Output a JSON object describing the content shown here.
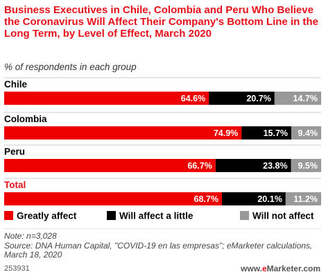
{
  "header": {
    "title": "Business Executives in Chile, Colombia and Peru Who Believe the Coronavirus Will Affect Their Company's Bottom Line in the Long Term, by Level of Effect, March 2020",
    "subtitle": "% of respondents in each group"
  },
  "chart_data": {
    "type": "bar",
    "orientation": "horizontal",
    "stacked": true,
    "categories": [
      "Chile",
      "Colombia",
      "Peru",
      "Total"
    ],
    "series": [
      {
        "name": "Greatly affect",
        "values": [
          64.6,
          74.9,
          66.7,
          68.7
        ],
        "labels": [
          "64.6%",
          "74.9%",
          "66.7%",
          "68.7%"
        ],
        "color": "#ee0000"
      },
      {
        "name": "Will affect a little",
        "values": [
          20.7,
          15.7,
          23.8,
          20.1
        ],
        "labels": [
          "20.7%",
          "15.7%",
          "23.8%",
          "20.1%"
        ],
        "color": "#000000"
      },
      {
        "name": "Will not affect",
        "values": [
          14.7,
          9.4,
          9.5,
          11.2
        ],
        "labels": [
          "14.7%",
          "9.4%",
          "9.5%",
          "11.2%"
        ],
        "color": "#999999"
      }
    ],
    "highlight_category": "Total",
    "highlight_color": "#e8121b",
    "legend_position": "bottom",
    "xlim": [
      0,
      100
    ]
  },
  "footer": {
    "note": "Note: n=3,028",
    "source": "Source: DNA Human Capital, \"COVID-19 en las empresas\"; eMarketer calculations, March 18, 2020",
    "chart_id": "253931",
    "brand_prefix": "www.",
    "brand_e": "e",
    "brand_rest": "Marketer.com"
  }
}
